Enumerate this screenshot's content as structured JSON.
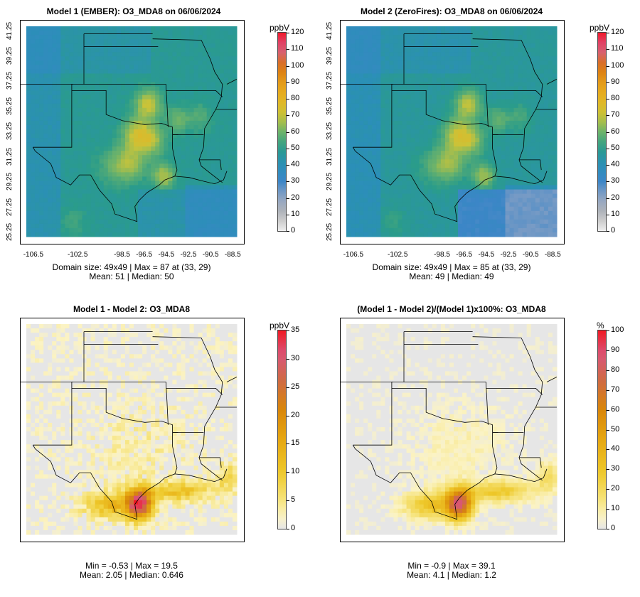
{
  "panels": [
    {
      "title": "Model 1 (EMBER): O3_MDA8 on 06/06/2024",
      "unit": "ppbV",
      "stats_line1": "Domain size: 49x49 | Max = 87 at (33, 29)",
      "stats_line2": "Mean: 51 |  Median: 50",
      "colorbar_ticks": [
        "120",
        "110",
        "100",
        "90",
        "80",
        "70",
        "60",
        "50",
        "40",
        "30",
        "20",
        "10",
        "0"
      ],
      "colorbar_max": 120
    },
    {
      "title": "Model 2 (ZeroFires): O3_MDA8 on 06/06/2024",
      "unit": "ppbV",
      "stats_line1": "Domain size: 49x49 | Max = 85 at (33, 29)",
      "stats_line2": "Mean: 49 |  Median: 49",
      "colorbar_ticks": [
        "120",
        "110",
        "100",
        "90",
        "80",
        "70",
        "60",
        "50",
        "40",
        "30",
        "20",
        "10",
        "0"
      ],
      "colorbar_max": 120
    },
    {
      "title": "Model 1 - Model 2: O3_MDA8",
      "unit": "ppbV",
      "stats_line1": "Min = -0.53 | Max = 19.5",
      "stats_line2": "Mean: 2.05 |  Median: 0.646",
      "colorbar_ticks": [
        "35",
        "30",
        "25",
        "20",
        "15",
        "10",
        "5",
        "0"
      ],
      "colorbar_max": 35
    },
    {
      "title": "(Model 1 - Model 2)/(Model 1)x100%: O3_MDA8",
      "unit": "%",
      "stats_line1": "Min = -0.9 | Max = 39.1",
      "stats_line2": "Mean: 4.1 |  Median: 1.2",
      "colorbar_ticks": [
        "100",
        "90",
        "80",
        "70",
        "60",
        "50",
        "40",
        "30",
        "20",
        "10",
        "0"
      ],
      "colorbar_max": 100
    }
  ],
  "axes": {
    "lat_ticks": [
      "25.25",
      "27.25",
      "29.25",
      "31.25",
      "33.25",
      "35.25",
      "37.25",
      "39.25",
      "41.25"
    ],
    "lon_ticks": [
      "-106.5",
      "-102.5",
      "-98.5",
      "-96.5",
      "-94.5",
      "-92.5",
      "-90.5",
      "-88.5"
    ]
  },
  "colors": {
    "background": "#ffffff",
    "ocean_gray": "#e6e6e6",
    "border_line": "#000000"
  }
}
